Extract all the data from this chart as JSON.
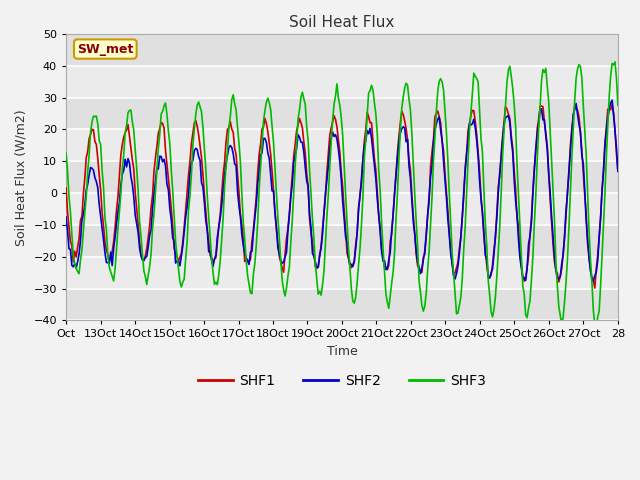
{
  "title": "Soil Heat Flux",
  "xlabel": "Time",
  "ylabel": "Soil Heat Flux (W/m2)",
  "ylim": [
    -40,
    50
  ],
  "background_color": "#f2f2f2",
  "plot_bg_color": "#e8e8e8",
  "grid_color": "#ffffff",
  "band_colors": [
    "#e0e0e0",
    "#ebebeb"
  ],
  "colors": {
    "SHF1": "#cc0000",
    "SHF2": "#0000cc",
    "SHF3": "#00bb00"
  },
  "xtick_labels": [
    "Oct",
    "13Oct",
    "14Oct",
    "15Oct",
    "16Oct",
    "17Oct",
    "18Oct",
    "19Oct",
    "20Oct",
    "21Oct",
    "22Oct",
    "23Oct",
    "24Oct",
    "25Oct",
    "26Oct",
    "27Oct",
    "28"
  ],
  "legend_label": "SW_met",
  "legend_box_color": "#ffffcc",
  "legend_box_edge": "#cc9900",
  "legend_text_color": "#880000",
  "yticks": [
    -40,
    -30,
    -20,
    -10,
    0,
    10,
    20,
    30,
    40,
    50
  ],
  "figsize": [
    6.4,
    4.8
  ],
  "dpi": 100
}
